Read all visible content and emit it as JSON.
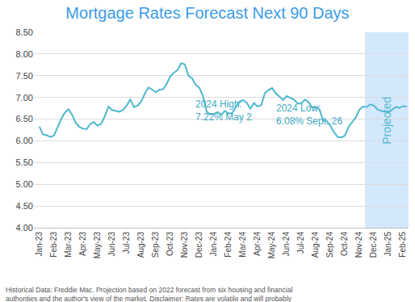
{
  "chart_data": {
    "type": "line",
    "title": "Mortgage Rates Forecast Next 90 Days",
    "color": "#4fb8cf",
    "grid": true,
    "categories": [
      "Jan-23",
      null,
      null,
      null,
      "Feb-23",
      null,
      null,
      null,
      "Mar-23",
      null,
      null,
      null,
      "Apr-23",
      null,
      null,
      null,
      "May-23",
      null,
      null,
      null,
      "Jun-23",
      null,
      null,
      null,
      "Jul-23",
      null,
      null,
      null,
      "Aug-23",
      null,
      null,
      null,
      "Sep-23",
      null,
      null,
      null,
      "Oct-23",
      null,
      null,
      null,
      "Nov-23",
      null,
      null,
      null,
      "Dec-23",
      null,
      null,
      null,
      "Jan-24",
      null,
      null,
      null,
      "Feb-24",
      null,
      null,
      null,
      "Mar-24",
      null,
      null,
      null,
      "Apr-24",
      null,
      null,
      null,
      "May-24",
      null,
      null,
      null,
      "Jun-24",
      null,
      null,
      null,
      "Jul-24",
      null,
      null,
      null,
      "Aug-24",
      null,
      null,
      null,
      "Sep-24",
      null,
      null,
      null,
      "Oct-24",
      null,
      null,
      null,
      "Nov-24",
      null,
      null,
      null,
      "Dec-24",
      null,
      null,
      null,
      "Jan-25",
      null,
      null,
      null,
      "Feb-25",
      null
    ],
    "values": [
      6.33,
      6.15,
      6.13,
      6.09,
      6.12,
      6.32,
      6.5,
      6.65,
      6.73,
      6.6,
      6.42,
      6.32,
      6.28,
      6.27,
      6.39,
      6.43,
      6.35,
      6.39,
      6.57,
      6.79,
      6.71,
      6.69,
      6.67,
      6.71,
      6.81,
      6.96,
      6.78,
      6.81,
      6.9,
      7.09,
      7.23,
      7.18,
      7.12,
      7.18,
      7.19,
      7.31,
      7.49,
      7.57,
      7.63,
      7.79,
      7.76,
      7.5,
      7.44,
      7.29,
      7.22,
      7.03,
      6.67,
      6.61,
      6.62,
      6.66,
      6.6,
      6.69,
      6.63,
      6.64,
      6.77,
      6.9,
      6.94,
      6.88,
      6.74,
      6.87,
      6.79,
      6.82,
      7.1,
      7.17,
      7.22,
      7.09,
      7.02,
      6.94,
      7.03,
      6.99,
      6.95,
      6.86,
      6.86,
      6.95,
      6.89,
      6.77,
      6.78,
      6.73,
      6.47,
      6.46,
      6.35,
      6.2,
      6.09,
      6.08,
      6.12,
      6.32,
      6.44,
      6.54,
      6.72,
      6.79,
      6.78,
      6.84,
      6.81,
      6.72,
      6.69,
      6.67,
      6.65,
      6.72,
      6.78,
      6.76,
      6.8,
      6.79
    ],
    "ylim": [
      4,
      8.5
    ],
    "yticks": [
      {
        "value": 4,
        "label": "4.00"
      },
      {
        "value": 4.5,
        "label": "4.50"
      },
      {
        "value": 5,
        "label": "5.00"
      },
      {
        "value": 5.5,
        "label": "5.50"
      },
      {
        "value": 6,
        "label": "6.00"
      },
      {
        "value": 6.5,
        "label": "6.50"
      },
      {
        "value": 7,
        "label": "7.00"
      },
      {
        "value": 7.5,
        "label": "7.50"
      },
      {
        "value": 8,
        "label": "8.00"
      },
      {
        "value": 8.5,
        "label": "8.50"
      }
    ],
    "projected": {
      "from_index": 90,
      "label": "Projected"
    },
    "annotations": [
      {
        "text": [
          "2024 High:",
          "7.22% May 2"
        ],
        "point_index": 64
      },
      {
        "text": [
          "2024 Low:",
          "6.08% Sept. 26"
        ],
        "point_index": 83
      }
    ],
    "caption": [
      "Historical Data: Freddie Mac. Projection based on 2022 forecast from six housing and financial",
      "authorities and the author's view of the market. Disclaimer: Rates are volatile and will probably"
    ]
  }
}
